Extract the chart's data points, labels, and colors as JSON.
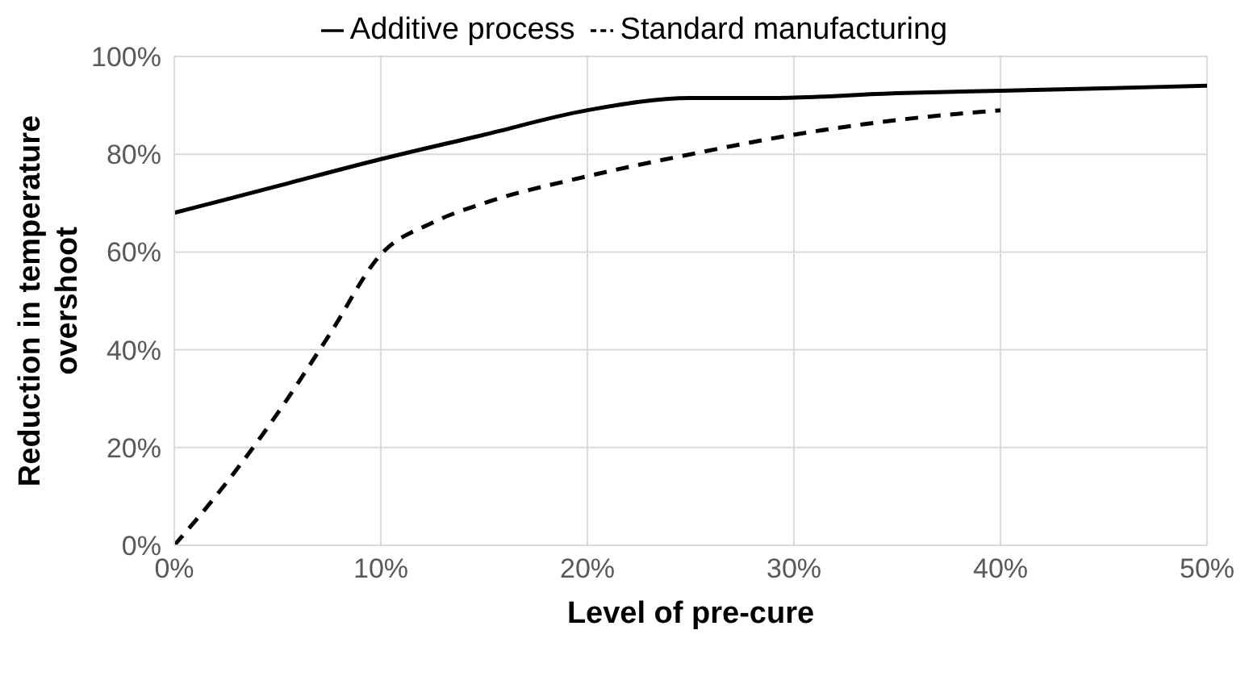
{
  "chart_data": {
    "type": "line",
    "xlabel": "Level of pre-cure",
    "ylabel": "Reduction in temperature overshoot",
    "xlim": [
      0,
      50
    ],
    "xticks": [
      {
        "value": 0,
        "label": "0%"
      },
      {
        "value": 10,
        "label": "10%"
      },
      {
        "value": 20,
        "label": "20%"
      },
      {
        "value": 30,
        "label": "30%"
      },
      {
        "value": 40,
        "label": "40%"
      },
      {
        "value": 50,
        "label": "50%"
      }
    ],
    "ylim": [
      0,
      100
    ],
    "yticks": [
      {
        "value": 0,
        "label": "0%"
      },
      {
        "value": 20,
        "label": "20%"
      },
      {
        "value": 40,
        "label": "40%"
      },
      {
        "value": 60,
        "label": "60%"
      },
      {
        "value": 80,
        "label": "80%"
      },
      {
        "value": 100,
        "label": "100%"
      }
    ],
    "grid": true,
    "legend": "top",
    "marker": "none",
    "series": [
      {
        "name": "Additive process",
        "color": "#000000",
        "line_style": "solid",
        "x": [
          0,
          5,
          10,
          15,
          20,
          25,
          29,
          35,
          40,
          45,
          50
        ],
        "values": [
          68,
          73.5,
          79,
          84,
          89,
          91.5,
          91.5,
          92.5,
          93,
          93.5,
          94
        ]
      },
      {
        "name": "Standard manufacturing",
        "color": "#000000",
        "line_style": "dashed",
        "x": [
          0,
          2,
          5,
          7.5,
          10,
          12.5,
          15,
          20,
          25,
          30,
          35,
          40
        ],
        "values": [
          0,
          10,
          27,
          43,
          59.5,
          66,
          70,
          75.5,
          80,
          84,
          87,
          89
        ]
      }
    ]
  }
}
